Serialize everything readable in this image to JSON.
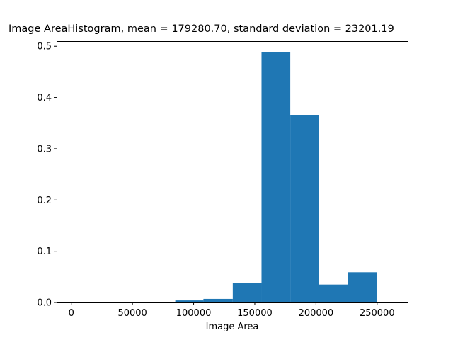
{
  "chart_data": {
    "type": "bar",
    "title": "Image AreaHistogram, mean = 179280.70,  standard deviation = 23201.19",
    "xlabel": "Image Area",
    "ylabel": "",
    "xlim": [
      -12000,
      275000
    ],
    "ylim": [
      0,
      0.51
    ],
    "xticks": [
      0,
      50000,
      100000,
      150000,
      200000,
      250000
    ],
    "xtick_labels": [
      "0",
      "50000",
      "100000",
      "150000",
      "200000",
      "250000"
    ],
    "yticks": [
      0.0,
      0.1,
      0.2,
      0.3,
      0.4,
      0.5
    ],
    "ytick_labels": [
      "0.0",
      "0.1",
      "0.2",
      "0.3",
      "0.4",
      "0.5"
    ],
    "bin_edges": [
      0,
      23700,
      47500,
      71200,
      85000,
      108000,
      132000,
      155500,
      179000,
      202500,
      226000,
      250000
    ],
    "values": [
      0.001,
      0.001,
      0.001,
      0.001,
      0.004,
      0.007,
      0.038,
      0.488,
      0.366,
      0.035,
      0.059
    ],
    "baseline_x_end": 262000,
    "bar_color": "#1f77b4",
    "grid": false
  }
}
